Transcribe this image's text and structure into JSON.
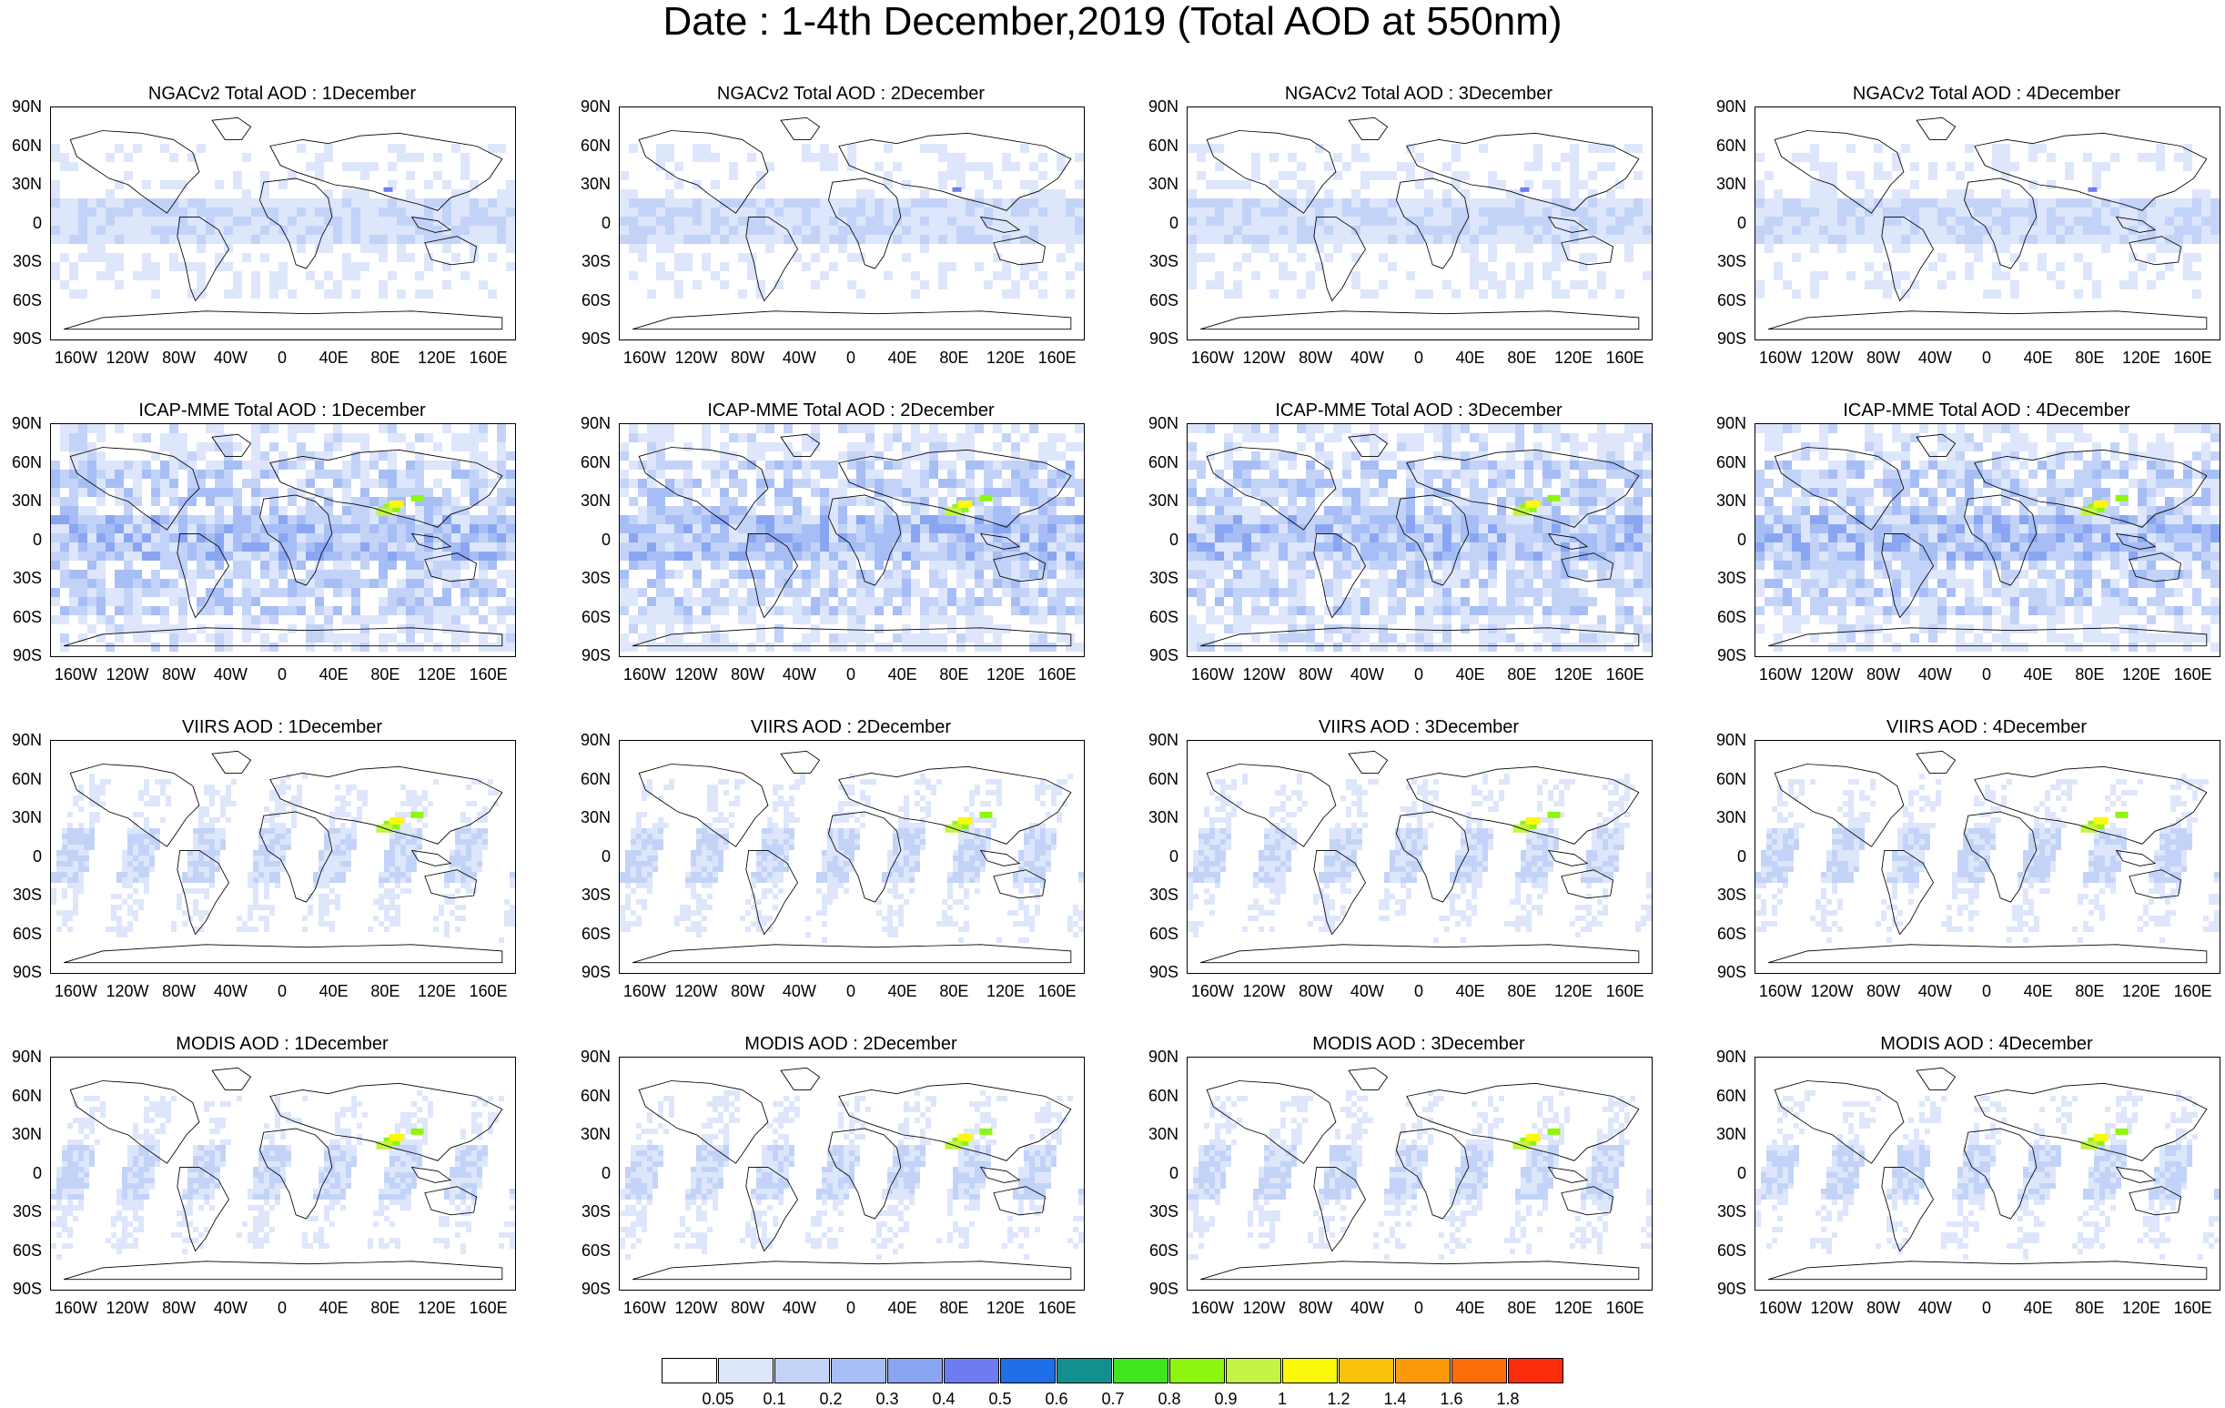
{
  "title": "Date : 1-4th December,2019 (Total AOD at 550nm)",
  "lat_labels": [
    "90N",
    "60N",
    "30N",
    "0",
    "30S",
    "60S",
    "90S"
  ],
  "lon_labels": [
    "160W",
    "120W",
    "80W",
    "40W",
    "0",
    "40E",
    "80E",
    "120E",
    "160E"
  ],
  "rows": [
    {
      "product": "ngac",
      "titles": [
        "NGACv2 Total AOD : 1December",
        "NGACv2 Total AOD : 2December",
        "NGACv2 Total AOD : 3December",
        "NGACv2 Total AOD : 4December"
      ]
    },
    {
      "product": "icap",
      "titles": [
        "ICAP-MME Total AOD : 1December",
        "ICAP-MME Total AOD : 2December",
        "ICAP-MME Total AOD : 3December",
        "ICAP-MME Total AOD : 4December"
      ]
    },
    {
      "product": "viirs",
      "titles": [
        "VIIRS AOD : 1December",
        "VIIRS AOD : 2December",
        "VIIRS AOD : 3December",
        "VIIRS AOD : 4December"
      ]
    },
    {
      "product": "modis",
      "titles": [
        "MODIS AOD : 1December",
        "MODIS AOD : 2December",
        "MODIS AOD : 3December",
        "MODIS AOD : 4December"
      ]
    }
  ],
  "colorbar": {
    "levels": [
      "0.05",
      "0.1",
      "0.2",
      "0.3",
      "0.4",
      "0.5",
      "0.6",
      "0.7",
      "0.8",
      "0.9",
      "1",
      "1.2",
      "1.4",
      "1.6",
      "1.8"
    ],
    "colors": [
      "#ffffff",
      "#dde6fb",
      "#c3d3f8",
      "#a6bef5",
      "#8aa6f2",
      "#6e7cef",
      "#1f6fe8",
      "#12908f",
      "#3fe61e",
      "#8ef510",
      "#c3f445",
      "#fcf80a",
      "#fbc20a",
      "#fb9a0a",
      "#fb6e0a",
      "#fa2c0a"
    ]
  }
}
